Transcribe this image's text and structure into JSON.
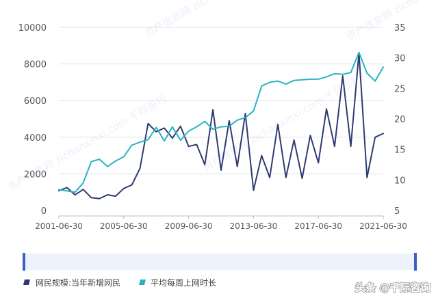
{
  "chart_data": {
    "type": "line",
    "title": "",
    "xlabel": "",
    "x_tick_labels": [
      "2001-06-30",
      "2005-06-30",
      "2009-06-30",
      "2013-06-30",
      "2017-06-30",
      "2021-06-30"
    ],
    "x_range": [
      2001.5,
      2021.5
    ],
    "y_left": {
      "ticks": [
        0,
        2000,
        4000,
        6000,
        8000,
        10000
      ],
      "ylim": [
        0,
        10000
      ]
    },
    "y_right": {
      "ticks": [
        5,
        10,
        15,
        20,
        25,
        30,
        35
      ],
      "ylim": [
        5,
        35
      ]
    },
    "legend_position": "bottom-left",
    "grid": "horizontal",
    "series": [
      {
        "name": "网民规模:当年新增网民",
        "axis": "left",
        "color": "#2e3a72",
        "x": [
          2001.5,
          2002.0,
          2002.5,
          2003.0,
          2003.5,
          2004.0,
          2004.5,
          2005.0,
          2005.5,
          2006.0,
          2006.5,
          2007.0,
          2007.5,
          2008.0,
          2008.5,
          2009.0,
          2009.5,
          2010.0,
          2010.5,
          2011.0,
          2011.5,
          2012.0,
          2012.5,
          2013.0,
          2013.5,
          2014.0,
          2014.5,
          2015.0,
          2015.5,
          2016.0,
          2016.5,
          2017.0,
          2017.5,
          2018.0,
          2018.5,
          2019.0,
          2019.5,
          2020.0,
          2020.5,
          2021.0,
          2021.5
        ],
        "y": [
          1080,
          1250,
          850,
          1150,
          700,
          650,
          860,
          780,
          1200,
          1400,
          2300,
          4750,
          4300,
          4500,
          3950,
          4600,
          3500,
          3600,
          2500,
          5500,
          2200,
          4900,
          2400,
          5300,
          1100,
          3000,
          1800,
          4700,
          1800,
          3850,
          1750,
          4100,
          2600,
          5550,
          3500,
          7350,
          3500,
          8600,
          1800,
          4000,
          4200
        ]
      },
      {
        "name": "平均每周上网时长",
        "axis": "right",
        "color": "#29b2c4",
        "x": [
          2001.5,
          2002.0,
          2002.5,
          2003.0,
          2003.5,
          2004.0,
          2004.5,
          2005.0,
          2005.5,
          2006.0,
          2006.5,
          2007.0,
          2007.5,
          2008.0,
          2008.5,
          2009.0,
          2009.5,
          2010.0,
          2010.5,
          2011.0,
          2011.5,
          2012.0,
          2012.5,
          2013.0,
          2013.5,
          2014.0,
          2014.5,
          2015.0,
          2015.5,
          2016.0,
          2016.5,
          2017.0,
          2017.5,
          2018.0,
          2018.5,
          2019.0,
          2019.5,
          2020.0,
          2020.5,
          2021.0,
          2021.5
        ],
        "y": [
          8.4,
          8.2,
          8.0,
          9.5,
          13.0,
          13.4,
          12.2,
          13.1,
          13.8,
          15.7,
          16.2,
          16.6,
          18.6,
          16.4,
          18.7,
          16.5,
          18.0,
          18.7,
          19.6,
          18.3,
          18.7,
          18.8,
          19.8,
          20.2,
          21.3,
          25.4,
          26.0,
          26.2,
          25.7,
          26.3,
          26.4,
          26.5,
          26.5,
          26.9,
          27.4,
          27.3,
          27.6,
          30.9,
          27.5,
          26.2,
          28.5
        ]
      }
    ]
  },
  "watermark": "资产信息网 zichanxinxi.com 千际投行",
  "branding": {
    "text": "头条 @千际咨询"
  },
  "colors": {
    "navy": "#2e3a72",
    "teal": "#29b2c4",
    "grid": "#e3e3e3",
    "scrollbar": "#3b5fc4"
  }
}
